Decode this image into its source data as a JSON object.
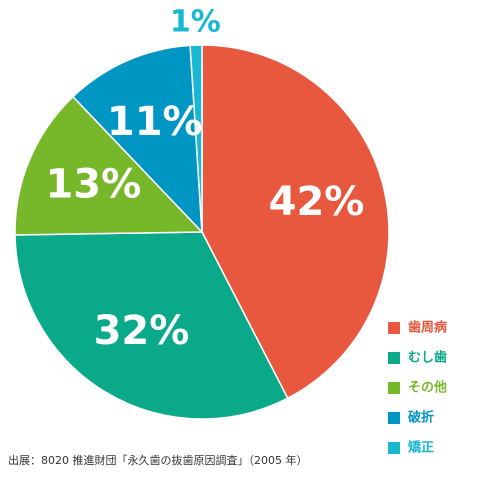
{
  "chart_data": {
    "type": "pie",
    "categories": [
      "歯周病",
      "むし歯",
      "その他",
      "破折",
      "矯正"
    ],
    "values": [
      42,
      32,
      13,
      11,
      1
    ],
    "value_labels": [
      "42%",
      "32%",
      "13%",
      "11%",
      "1%"
    ],
    "colors": [
      "#e8583f",
      "#0aa98a",
      "#77b82a",
      "#0096c4",
      "#18b9d0"
    ],
    "legend": "bottom-right",
    "source": "出展：8020 推進財団「永久歯の抜歯原因調査」（2005 年）"
  }
}
